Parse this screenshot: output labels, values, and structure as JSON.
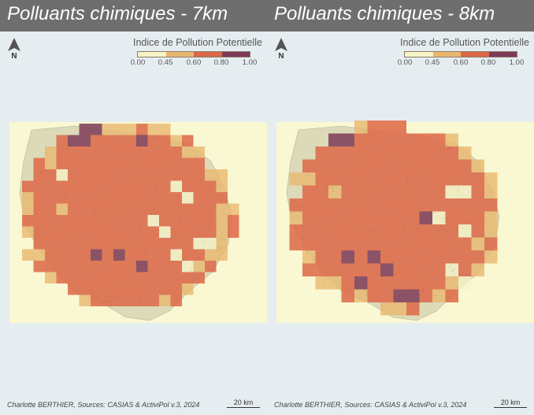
{
  "colors": {
    "page_bg": "#e6edf1",
    "title_bar": "#6e6e6e",
    "bg_region": "#f9f8d2",
    "commune_fill": "#dcdab8",
    "class_0_045": "#f6f3c7",
    "class_045_060": "#e9b86f",
    "class_060_080": "#dd6746",
    "class_080_100": "#7d3b56"
  },
  "panels": [
    {
      "title": "Polluants chimiques - 7km",
      "north_label": "N",
      "legend_title": "Indice de Pollution Potentielle",
      "legend_ticks": [
        "0.00",
        "0.45",
        "0.60",
        "0.80",
        "1.00"
      ],
      "credit": "Charlotte BERTHIER, Sources: CASIAS & ActiviPol v.3, 2024",
      "scale_label": "20 km",
      "north_icon": "north-arrow-icon"
    },
    {
      "title": "Polluants chimiques - 8km",
      "north_label": "N",
      "legend_title": "Indice de Pollution Potentielle",
      "legend_ticks": [
        "0.00",
        "0.45",
        "0.60",
        "0.80",
        "1.00"
      ],
      "credit": "Charlotte BERTHIER, Sources: CASIAS & ActiviPol v.3, 2024",
      "scale_label": "20 km",
      "north_icon": "north-arrow-icon"
    }
  ]
}
